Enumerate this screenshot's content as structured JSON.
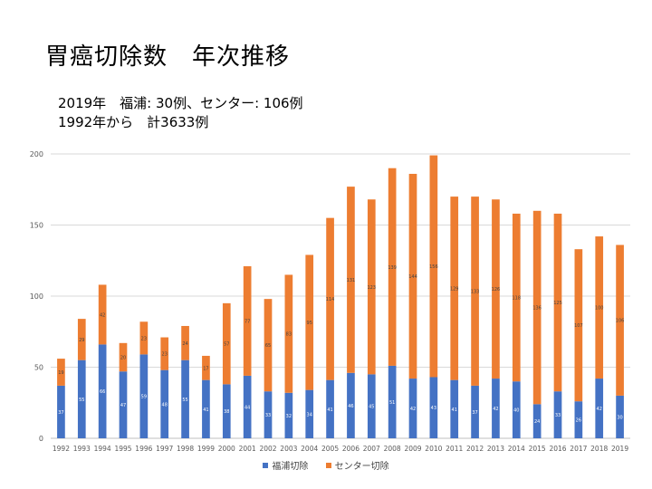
{
  "title": "胃癌切除数　年次推移",
  "subtitle": {
    "line1": "2019年　福浦: 30例、センター: 106例",
    "line2": "1992年から　計3633例"
  },
  "colors": {
    "fukuura": "#4472C4",
    "center": "#ED7D31"
  },
  "chart_data": {
    "type": "bar",
    "stacked": true,
    "categories": [
      "1992",
      "1993",
      "1994",
      "1995",
      "1996",
      "1997",
      "1998",
      "1999",
      "2000",
      "2001",
      "2002",
      "2003",
      "2004",
      "2005",
      "2006",
      "2007",
      "2008",
      "2009",
      "2010",
      "2011",
      "2012",
      "2013",
      "2014",
      "2015",
      "2016",
      "2017",
      "2018",
      "2019"
    ],
    "series": [
      {
        "name": "福浦切除",
        "values": [
          37,
          55,
          66,
          47,
          59,
          48,
          55,
          41,
          38,
          44,
          33,
          32,
          34,
          41,
          46,
          45,
          51,
          42,
          43,
          41,
          37,
          42,
          40,
          24,
          33,
          26,
          42,
          30
        ]
      },
      {
        "name": "センター切除",
        "values": [
          19,
          29,
          42,
          20,
          23,
          23,
          24,
          17,
          57,
          77,
          65,
          83,
          95,
          114,
          131,
          123,
          139,
          144,
          156,
          129,
          133,
          126,
          118,
          136,
          125,
          107,
          100,
          106
        ]
      }
    ],
    "yticks": [
      0,
      50,
      100,
      150,
      200
    ],
    "ylim": [
      0,
      200
    ],
    "legend_position": "bottom"
  }
}
